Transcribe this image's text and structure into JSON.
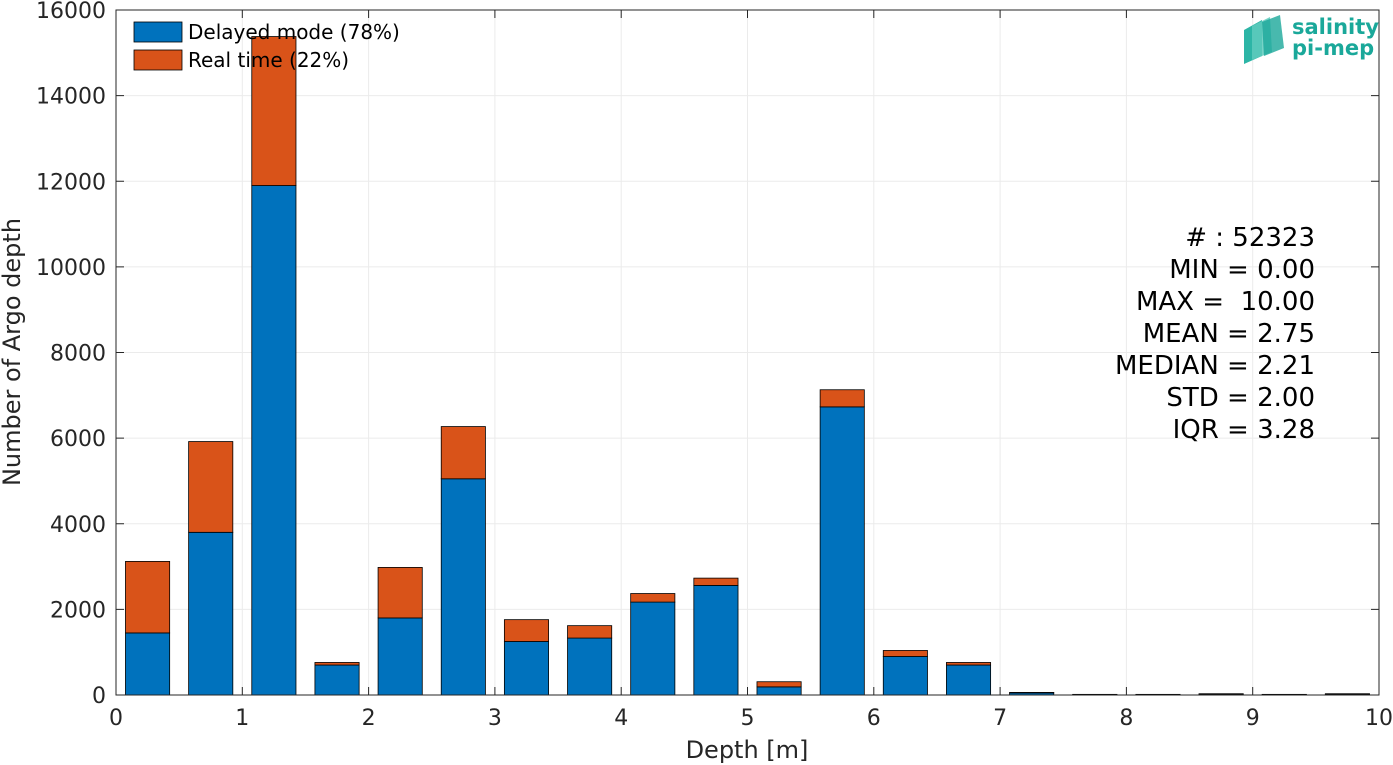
{
  "chart_data": {
    "type": "bar",
    "stacked": true,
    "xlabel": "Depth [m]",
    "ylabel": "Number of Argo depth",
    "xlim": [
      0,
      10
    ],
    "ylim": [
      0,
      16000
    ],
    "xticks": [
      "0",
      "1",
      "2",
      "3",
      "4",
      "5",
      "6",
      "7",
      "8",
      "9",
      "10"
    ],
    "yticks": [
      "0",
      "2000",
      "4000",
      "6000",
      "8000",
      "10000",
      "12000",
      "14000",
      "16000"
    ],
    "grid": true,
    "legend_position": "top-left",
    "bin_width": 0.5,
    "x": [
      0.25,
      0.75,
      1.25,
      1.75,
      2.25,
      2.75,
      3.25,
      3.75,
      4.25,
      4.75,
      5.25,
      5.75,
      6.25,
      6.75,
      7.25,
      7.75,
      8.25,
      8.75,
      9.25,
      9.75
    ],
    "series": [
      {
        "name": "Delayed mode (78%)",
        "color": "#0072BD",
        "values": [
          1450,
          3800,
          11900,
          700,
          1800,
          5050,
          1250,
          1330,
          2170,
          2560,
          190,
          6730,
          900,
          700,
          50,
          10,
          10,
          20,
          10,
          20
        ]
      },
      {
        "name": "Real time (22%)",
        "color": "#D95319",
        "values": [
          1670,
          2120,
          3480,
          60,
          1180,
          1220,
          510,
          290,
          200,
          170,
          120,
          400,
          140,
          60,
          10,
          5,
          5,
          10,
          5,
          10
        ]
      }
    ]
  },
  "stats": [
    "# : 52323",
    "MIN = 0.00",
    "MAX =  10.00",
    "MEAN = 2.75",
    "MEDIAN = 2.21",
    "STD = 2.00",
    "IQR = 3.28"
  ],
  "logo": {
    "line1": "salinity",
    "line2": "pi-mep",
    "color": "#1aa89a"
  }
}
